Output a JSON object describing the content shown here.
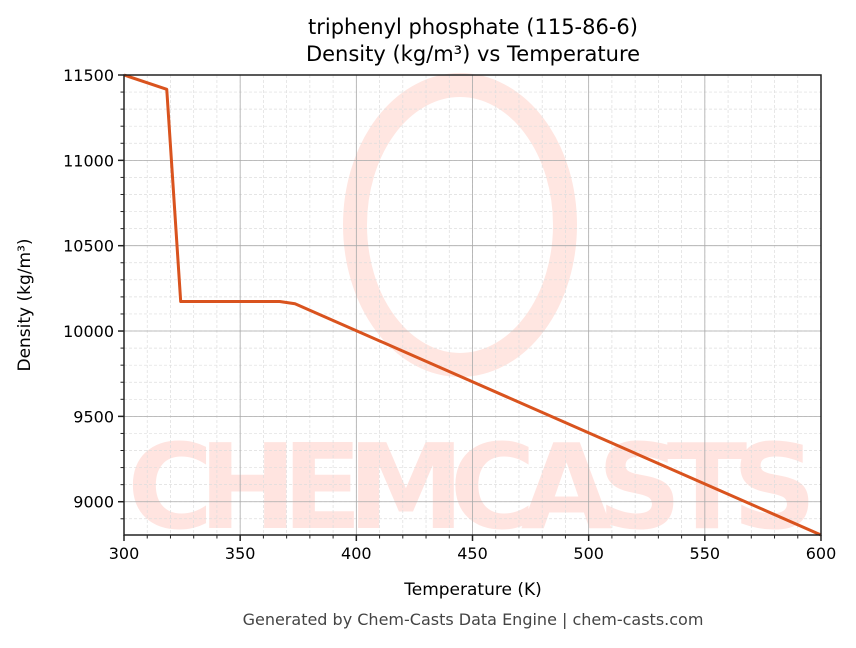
{
  "chart_data": {
    "type": "line",
    "title": "triphenyl phosphate (115-86-6)",
    "subtitle": "Density (kg/m³) vs Temperature",
    "xlabel": "Temperature (K)",
    "ylabel": "Density (kg/m³)",
    "xlim": [
      300,
      600
    ],
    "ylim": [
      8805,
      11500
    ],
    "xticks": [
      300,
      350,
      400,
      450,
      500,
      550,
      600
    ],
    "yticks": [
      9000,
      9500,
      10000,
      10500,
      11000,
      11500
    ],
    "grid": true,
    "line_color": "#d9531e",
    "series": [
      {
        "x": [
          300,
          318.4,
          324.4,
          367,
          373.6,
          600
        ],
        "y": [
          11500,
          11416,
          10173,
          10173,
          10160,
          8805
        ]
      }
    ]
  },
  "watermark": "CHEMCASTS",
  "footer": "Generated by Chem-Casts Data Engine | chem-casts.com"
}
